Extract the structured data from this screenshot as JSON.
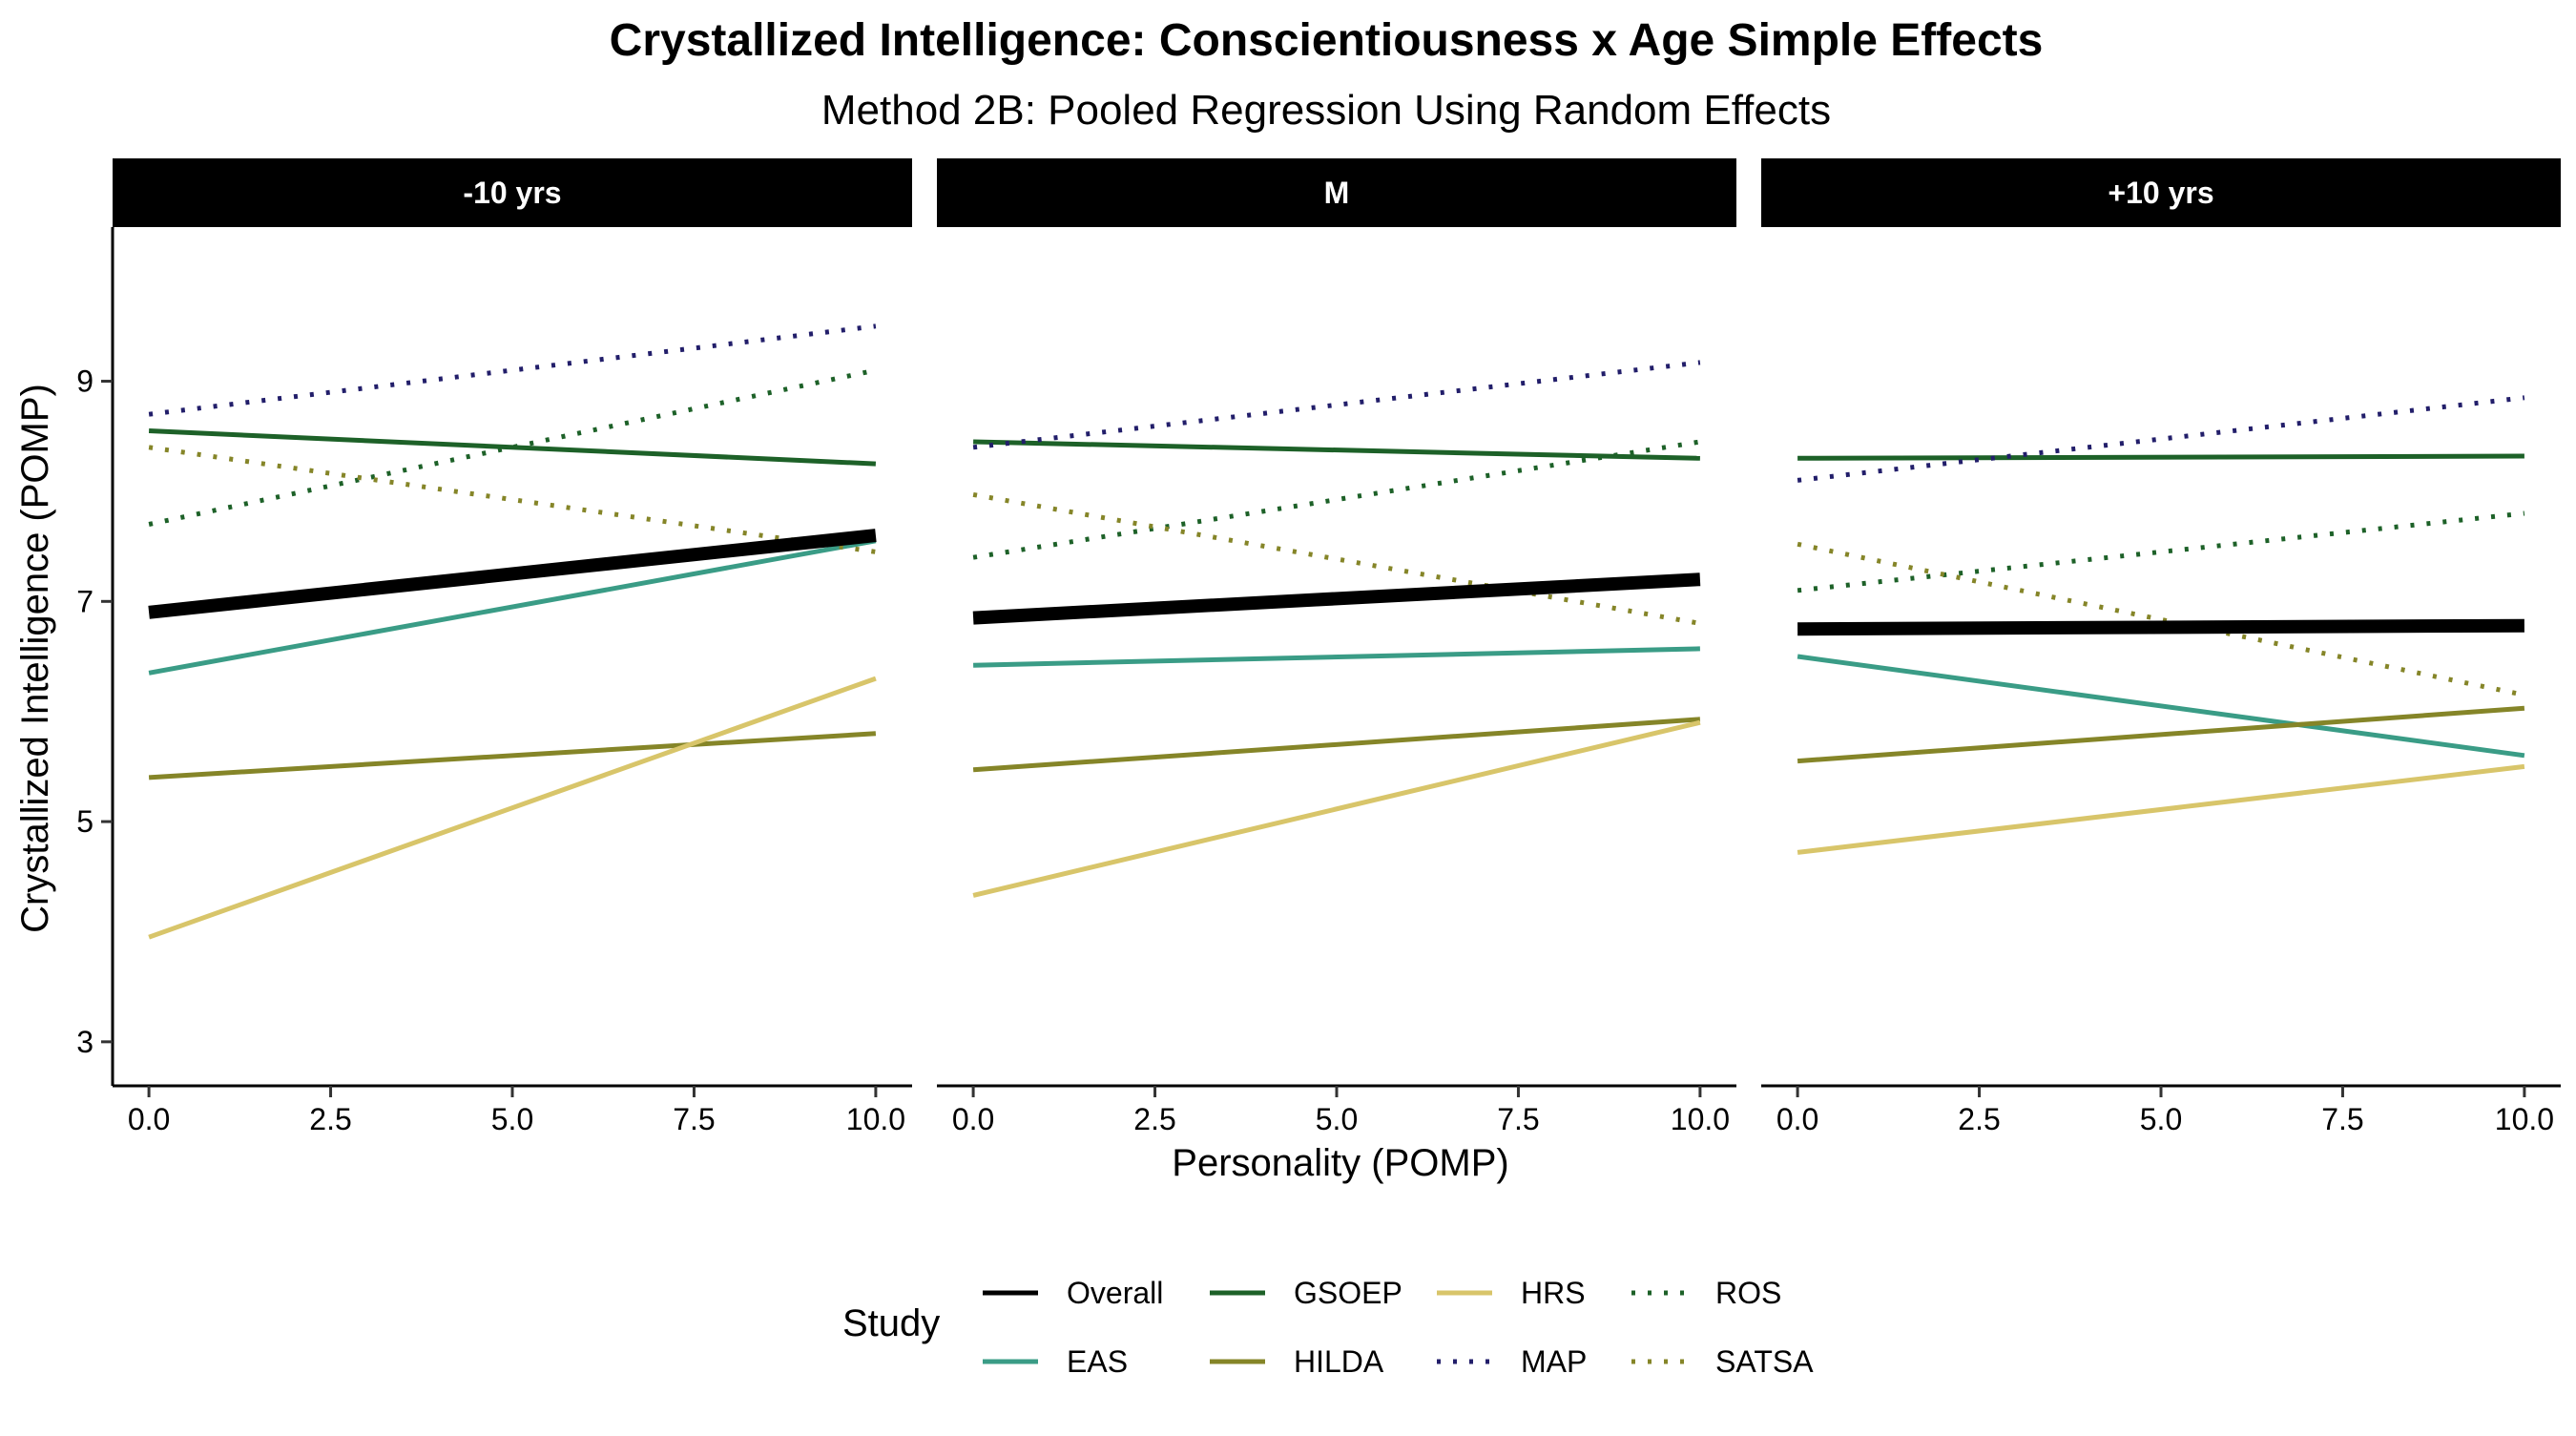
{
  "chart_data": {
    "type": "line",
    "title": "Crystallized Intelligence: Conscientiousness x Age Simple Effects",
    "subtitle": "Method 2B: Pooled Regression Using Random Effects",
    "xlabel": "Personality (POMP)",
    "ylabel": "Crystallized Intelligence (POMP)",
    "xlim": [
      -0.5,
      10.5
    ],
    "ylim": [
      2.6,
      10.4
    ],
    "x_ticks": [
      0,
      2.5,
      5,
      7.5,
      10
    ],
    "x_tick_labels": [
      "0.0",
      "2.5",
      "5.0",
      "7.5",
      "10.0"
    ],
    "y_ticks": [
      3,
      5,
      7,
      9
    ],
    "y_tick_labels": [
      "3",
      "5",
      "7",
      "9"
    ],
    "grid": false,
    "legend": {
      "title": "Study",
      "placement": "bottom",
      "entries": [
        "Overall",
        "EAS",
        "GSOEP",
        "HILDA",
        "HRS",
        "MAP",
        "ROS",
        "SATSA"
      ]
    },
    "series_styles": {
      "Overall": {
        "color": "#000000",
        "dash": "solid",
        "width": 14
      },
      "EAS": {
        "color": "#3A9C86",
        "dash": "solid",
        "width": 5
      },
      "GSOEP": {
        "color": "#1D6128",
        "dash": "solid",
        "width": 5
      },
      "HILDA": {
        "color": "#858528",
        "dash": "solid",
        "width": 5
      },
      "HRS": {
        "color": "#D8C56A",
        "dash": "solid",
        "width": 5
      },
      "MAP": {
        "color": "#221E6A",
        "dash": "dotted",
        "width": 5
      },
      "ROS": {
        "color": "#1D6128",
        "dash": "dotted",
        "width": 5
      },
      "SATSA": {
        "color": "#858528",
        "dash": "dotted",
        "width": 5
      }
    },
    "panels": [
      {
        "label": "-10 yrs",
        "series": [
          {
            "name": "Overall",
            "x": [
              0,
              10
            ],
            "y": [
              6.9,
              7.6
            ]
          },
          {
            "name": "EAS",
            "x": [
              0,
              10
            ],
            "y": [
              6.35,
              7.55
            ]
          },
          {
            "name": "GSOEP",
            "x": [
              0,
              10
            ],
            "y": [
              8.55,
              8.25
            ]
          },
          {
            "name": "HILDA",
            "x": [
              0,
              10
            ],
            "y": [
              5.4,
              5.8
            ]
          },
          {
            "name": "HRS",
            "x": [
              0,
              10
            ],
            "y": [
              3.95,
              6.3
            ]
          },
          {
            "name": "MAP",
            "x": [
              0,
              10
            ],
            "y": [
              8.7,
              9.5
            ]
          },
          {
            "name": "ROS",
            "x": [
              0,
              10
            ],
            "y": [
              7.7,
              9.1
            ]
          },
          {
            "name": "SATSA",
            "x": [
              0,
              10
            ],
            "y": [
              8.4,
              7.45
            ]
          }
        ]
      },
      {
        "label": "M",
        "series": [
          {
            "name": "Overall",
            "x": [
              0,
              10
            ],
            "y": [
              6.85,
              7.2
            ]
          },
          {
            "name": "EAS",
            "x": [
              0,
              10
            ],
            "y": [
              6.42,
              6.57
            ]
          },
          {
            "name": "GSOEP",
            "x": [
              0,
              10
            ],
            "y": [
              8.45,
              8.3
            ]
          },
          {
            "name": "HILDA",
            "x": [
              0,
              10
            ],
            "y": [
              5.47,
              5.93
            ]
          },
          {
            "name": "HRS",
            "x": [
              0,
              10
            ],
            "y": [
              4.33,
              5.9
            ]
          },
          {
            "name": "MAP",
            "x": [
              0,
              10
            ],
            "y": [
              8.4,
              9.17
            ]
          },
          {
            "name": "ROS",
            "x": [
              0,
              10
            ],
            "y": [
              7.4,
              8.45
            ]
          },
          {
            "name": "SATSA",
            "x": [
              0,
              10
            ],
            "y": [
              7.97,
              6.8
            ]
          }
        ]
      },
      {
        "label": "+10 yrs",
        "series": [
          {
            "name": "Overall",
            "x": [
              0,
              10
            ],
            "y": [
              6.75,
              6.78
            ]
          },
          {
            "name": "EAS",
            "x": [
              0,
              10
            ],
            "y": [
              6.5,
              5.6
            ]
          },
          {
            "name": "GSOEP",
            "x": [
              0,
              10
            ],
            "y": [
              8.3,
              8.32
            ]
          },
          {
            "name": "HILDA",
            "x": [
              0,
              10
            ],
            "y": [
              5.55,
              6.03
            ]
          },
          {
            "name": "HRS",
            "x": [
              0,
              10
            ],
            "y": [
              4.72,
              5.5
            ]
          },
          {
            "name": "MAP",
            "x": [
              0,
              10
            ],
            "y": [
              8.1,
              8.85
            ]
          },
          {
            "name": "ROS",
            "x": [
              0,
              10
            ],
            "y": [
              7.1,
              7.8
            ]
          },
          {
            "name": "SATSA",
            "x": [
              0,
              10
            ],
            "y": [
              7.52,
              6.15
            ]
          }
        ]
      }
    ]
  }
}
